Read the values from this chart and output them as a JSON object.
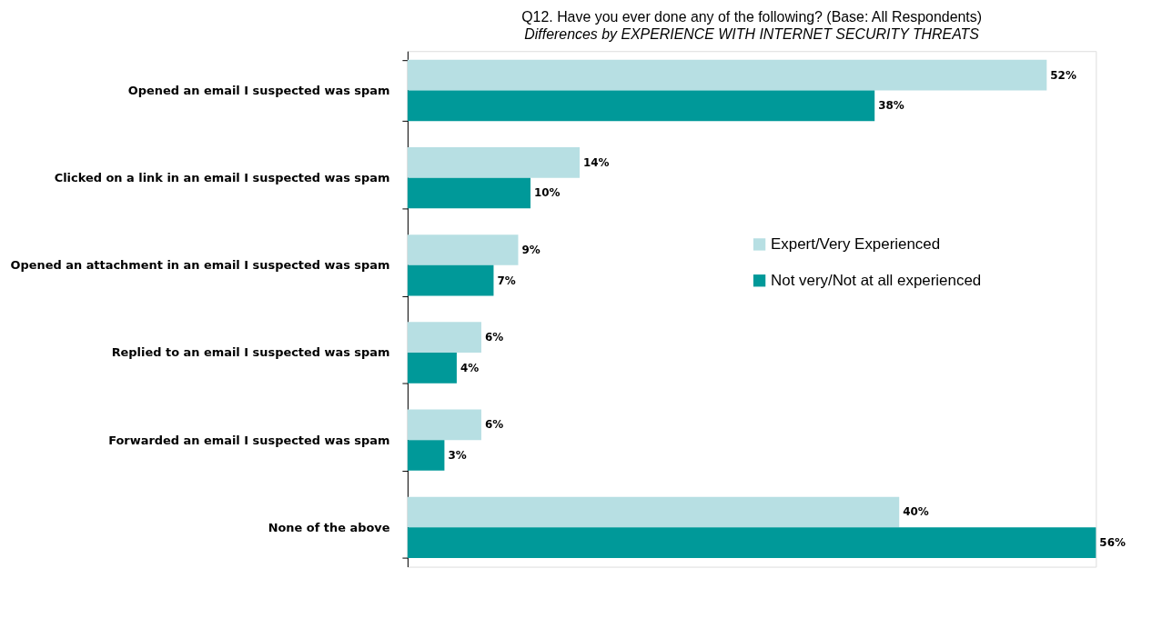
{
  "chart_data": {
    "type": "bar",
    "orientation": "horizontal",
    "title": "Q12. Have you ever done any of the following? (Base: All Respondents)",
    "subtitle": "Differences by EXPERIENCE WITH INTERNET SECURITY THREATS",
    "categories": [
      "Opened an email I suspected was spam",
      "Clicked on a link in an email I suspected was spam",
      "Opened an attachment in an email I suspected was spam",
      "Replied to an email I suspected was spam",
      "Forwarded an email I suspected was spam",
      "None of the above"
    ],
    "series": [
      {
        "name": "Expert/Very Experienced",
        "color": "#b7dfe3",
        "values": [
          52,
          14,
          9,
          6,
          6,
          40
        ],
        "value_labels": [
          "52%",
          "14%",
          "9%",
          "6%",
          "6%",
          "40%"
        ]
      },
      {
        "name": "Not very/Not at all experienced",
        "color": "#009999",
        "values": [
          38,
          10,
          7,
          4,
          3,
          56
        ],
        "value_labels": [
          "38%",
          "10%",
          "7%",
          "4%",
          "3%",
          "56%"
        ]
      }
    ],
    "legend": "right"
  }
}
